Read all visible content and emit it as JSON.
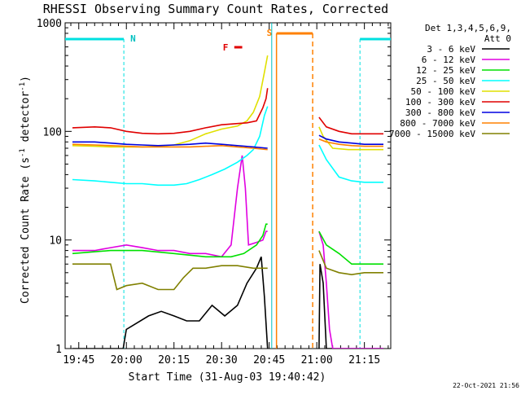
{
  "chart_data": {
    "type": "line",
    "title": "RHESSI Observing Summary Count Rates, Corrected",
    "xlabel": "Start Time (31-Aug-03 19:40:42)",
    "ylabel_main": "Corrected Count Rate (s",
    "ylabel_exp1": "-1",
    "ylabel_mid": " detector",
    "ylabel_exp2": "-1",
    "ylabel_end": ")",
    "y_scale": "log",
    "ylim": [
      1,
      1000
    ],
    "xlim_minutes": [
      -4.3,
      98.3
    ],
    "xlim_note": "minutes after 19:45",
    "x_ticks": [
      {
        "min": 0,
        "label": "19:45"
      },
      {
        "min": 15,
        "label": "20:00"
      },
      {
        "min": 30,
        "label": "20:15"
      },
      {
        "min": 45,
        "label": "20:30"
      },
      {
        "min": 60,
        "label": "20:45"
      },
      {
        "min": 75,
        "label": "21:00"
      },
      {
        "min": 90,
        "label": "21:15"
      }
    ],
    "y_ticks": [
      {
        "v": 1,
        "label": "1"
      },
      {
        "v": 10,
        "label": "10"
      },
      {
        "v": 100,
        "label": "100"
      },
      {
        "v": 1000,
        "label": "1000"
      }
    ],
    "legend_header": [
      "Det 1,3,4,5,6,9,",
      "Att 0"
    ],
    "legend_position": "top-right, outside plot",
    "gaps_minutes": [
      [
        59.5,
        75.7
      ]
    ],
    "series": [
      {
        "name": "3 - 6 keV",
        "color": "#000000",
        "points": [
          [
            -2,
            1.0
          ],
          [
            14,
            1.0
          ],
          [
            15,
            1.5
          ],
          [
            22,
            2.0
          ],
          [
            26,
            2.2
          ],
          [
            30,
            2.0
          ],
          [
            34,
            1.8
          ],
          [
            38,
            1.8
          ],
          [
            42,
            2.5
          ],
          [
            46,
            2.0
          ],
          [
            50,
            2.5
          ],
          [
            53,
            4.0
          ],
          [
            56,
            5.5
          ],
          [
            57.5,
            7.0
          ],
          [
            58.5,
            3.0
          ],
          [
            59.5,
            1.0
          ],
          [
            75.7,
            1.0
          ],
          [
            76,
            6.0
          ],
          [
            77,
            4.0
          ],
          [
            78,
            1.0
          ],
          [
            96,
            1.0
          ]
        ]
      },
      {
        "name": "6 - 12 keV",
        "color": "#e000e0",
        "points": [
          [
            -2,
            8.0
          ],
          [
            5,
            8.0
          ],
          [
            10,
            8.5
          ],
          [
            15,
            9.0
          ],
          [
            20,
            8.5
          ],
          [
            25,
            8.0
          ],
          [
            30,
            8.0
          ],
          [
            35,
            7.5
          ],
          [
            40,
            7.5
          ],
          [
            45,
            7.0
          ],
          [
            48,
            9.0
          ],
          [
            50,
            30.0
          ],
          [
            51.5,
            60.0
          ],
          [
            52.5,
            30.0
          ],
          [
            53.5,
            9.0
          ],
          [
            56,
            9.5
          ],
          [
            58,
            10.0
          ],
          [
            59,
            12.0
          ],
          [
            59.5,
            12.0
          ],
          [
            75.7,
            12.0
          ],
          [
            77,
            9.0
          ],
          [
            78,
            4.0
          ],
          [
            79,
            1.5
          ],
          [
            80,
            1.0
          ],
          [
            96,
            1.0
          ]
        ]
      },
      {
        "name": "12 - 25 keV",
        "color": "#00e000",
        "points": [
          [
            -2,
            7.5
          ],
          [
            10,
            8.0
          ],
          [
            20,
            8.0
          ],
          [
            30,
            7.5
          ],
          [
            40,
            7.0
          ],
          [
            48,
            7.0
          ],
          [
            52,
            7.5
          ],
          [
            56,
            9.0
          ],
          [
            58,
            11.0
          ],
          [
            59,
            14.0
          ],
          [
            59.5,
            14.0
          ],
          [
            75.7,
            12.0
          ],
          [
            78,
            9.0
          ],
          [
            82,
            7.5
          ],
          [
            86,
            6.0
          ],
          [
            90,
            6.0
          ],
          [
            96,
            6.0
          ]
        ]
      },
      {
        "name": "25 - 50 keV",
        "color": "#00ffff",
        "points": [
          [
            -2,
            36
          ],
          [
            5,
            35
          ],
          [
            10,
            34
          ],
          [
            15,
            33
          ],
          [
            20,
            33
          ],
          [
            25,
            32
          ],
          [
            30,
            32
          ],
          [
            34,
            33
          ],
          [
            38,
            36
          ],
          [
            42,
            40
          ],
          [
            46,
            45
          ],
          [
            50,
            52
          ],
          [
            53,
            60
          ],
          [
            55,
            68
          ],
          [
            57,
            90
          ],
          [
            58.5,
            140
          ],
          [
            59.5,
            170
          ],
          [
            75.7,
            75
          ],
          [
            78,
            55
          ],
          [
            82,
            38
          ],
          [
            86,
            35
          ],
          [
            90,
            34
          ],
          [
            96,
            34
          ]
        ]
      },
      {
        "name": "50 - 100 keV",
        "color": "#e0e000",
        "points": [
          [
            -2,
            74
          ],
          [
            5,
            73
          ],
          [
            10,
            72
          ],
          [
            15,
            72
          ],
          [
            20,
            72
          ],
          [
            25,
            73
          ],
          [
            30,
            75
          ],
          [
            35,
            82
          ],
          [
            40,
            95
          ],
          [
            45,
            105
          ],
          [
            50,
            112
          ],
          [
            53,
            125
          ],
          [
            55,
            150
          ],
          [
            57,
            210
          ],
          [
            58.5,
            350
          ],
          [
            59.5,
            500
          ],
          [
            75.7,
            110
          ],
          [
            77,
            90
          ],
          [
            80,
            70
          ],
          [
            85,
            68
          ],
          [
            90,
            68
          ],
          [
            96,
            68
          ]
        ]
      },
      {
        "name": "100 - 300 keV",
        "color": "#e00000",
        "points": [
          [
            -2,
            108
          ],
          [
            5,
            110
          ],
          [
            10,
            108
          ],
          [
            15,
            100
          ],
          [
            20,
            96
          ],
          [
            25,
            95
          ],
          [
            30,
            96
          ],
          [
            35,
            100
          ],
          [
            40,
            108
          ],
          [
            45,
            115
          ],
          [
            50,
            118
          ],
          [
            53,
            120
          ],
          [
            56,
            125
          ],
          [
            58,
            165
          ],
          [
            59,
            200
          ],
          [
            59.5,
            250
          ],
          [
            75.7,
            135
          ],
          [
            78,
            110
          ],
          [
            82,
            100
          ],
          [
            86,
            95
          ],
          [
            90,
            95
          ],
          [
            96,
            95
          ]
        ]
      },
      {
        "name": "300 - 800 keV",
        "color": "#0000e0",
        "points": [
          [
            -2,
            80
          ],
          [
            5,
            80
          ],
          [
            10,
            78
          ],
          [
            15,
            76
          ],
          [
            20,
            75
          ],
          [
            25,
            74
          ],
          [
            30,
            75
          ],
          [
            35,
            76
          ],
          [
            40,
            78
          ],
          [
            45,
            76
          ],
          [
            50,
            74
          ],
          [
            55,
            72
          ],
          [
            59.5,
            70
          ],
          [
            75.7,
            92
          ],
          [
            78,
            85
          ],
          [
            82,
            80
          ],
          [
            86,
            78
          ],
          [
            90,
            76
          ],
          [
            96,
            76
          ]
        ]
      },
      {
        "name": "800 - 7000 keV",
        "color": "#ff8000",
        "points": [
          [
            -2,
            76
          ],
          [
            5,
            75
          ],
          [
            10,
            74
          ],
          [
            15,
            73
          ],
          [
            20,
            72
          ],
          [
            25,
            72
          ],
          [
            30,
            72
          ],
          [
            35,
            72
          ],
          [
            40,
            73
          ],
          [
            45,
            74
          ],
          [
            50,
            72
          ],
          [
            55,
            70
          ],
          [
            59.5,
            68
          ],
          [
            75.7,
            85
          ],
          [
            78,
            80
          ],
          [
            82,
            76
          ],
          [
            86,
            74
          ],
          [
            90,
            73
          ],
          [
            96,
            73
          ]
        ]
      },
      {
        "name": "7000 - 15000 keV",
        "color": "#808000",
        "points": [
          [
            -2,
            6.0
          ],
          [
            5,
            6.0
          ],
          [
            10,
            6.0
          ],
          [
            12,
            3.5
          ],
          [
            15,
            3.8
          ],
          [
            20,
            4.0
          ],
          [
            25,
            3.5
          ],
          [
            30,
            3.5
          ],
          [
            33,
            4.5
          ],
          [
            36,
            5.5
          ],
          [
            40,
            5.5
          ],
          [
            45,
            5.8
          ],
          [
            50,
            5.8
          ],
          [
            55,
            5.5
          ],
          [
            59.5,
            5.5
          ],
          [
            75.7,
            8.0
          ],
          [
            78,
            5.5
          ],
          [
            82,
            5.0
          ],
          [
            86,
            4.8
          ],
          [
            90,
            5.0
          ],
          [
            96,
            5.0
          ]
        ]
      }
    ],
    "annotations": {
      "night_label": "N",
      "night_lines_min": [
        14.2,
        88.6
      ],
      "night_bars_min": [
        [
          -4.3,
          14.2
        ],
        [
          88.6,
          98.3
        ]
      ],
      "saa_label": "S",
      "saa_lines_min": [
        62.3,
        73.7
      ],
      "saa_bar_min": [
        62.3,
        73.7
      ],
      "flare_label": "F",
      "flare_bar_min": [
        49.0,
        51.5
      ],
      "attenuator_line_min": 60.8
    },
    "grid": false,
    "timestamp": "22-Oct-2021 21:56"
  }
}
